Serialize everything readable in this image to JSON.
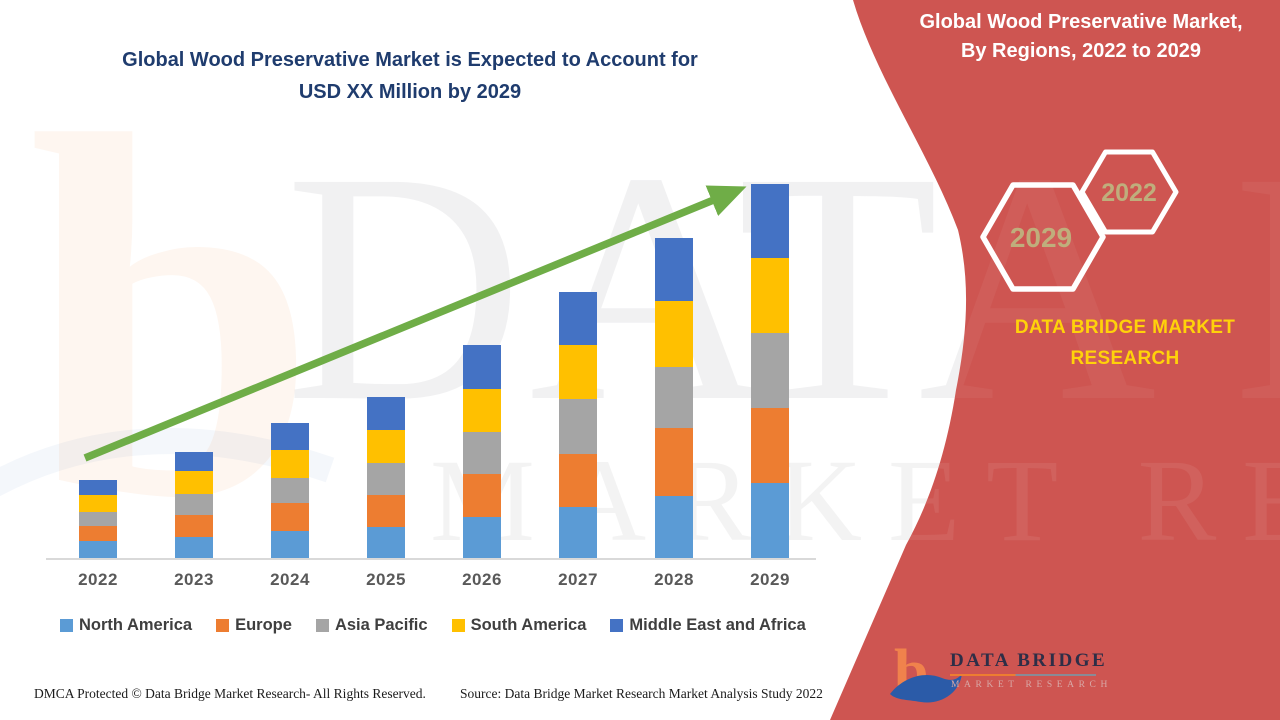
{
  "title": {
    "line1": "Global Wood Preservative Market is Expected to Account for",
    "line2": "USD XX Million by 2029"
  },
  "sidebar": {
    "heading_line1": "Global Wood Preservative Market,",
    "heading_line2": "By Regions, 2022 to 2029",
    "hexagons": [
      {
        "label": "2029"
      },
      {
        "label": "2022"
      }
    ],
    "brand_line1": "DATA BRIDGE MARKET",
    "brand_line2": "RESEARCH",
    "accent_red": "#ce5551",
    "brand_yellow": "#ffd20a",
    "hex_text_color": "#bfae7c"
  },
  "logo": {
    "mark": "b-swoosh-icon",
    "name": "DATA BRIDGE",
    "subtitle": "MARKET RESEARCH"
  },
  "watermark": {
    "letter": "b",
    "line1": "DATA BRIDGE",
    "line2": "MARKET RESEARCH"
  },
  "footer": {
    "left": "DMCA Protected © Data Bridge Market Research- All Rights Reserved.",
    "source": "Source: Data Bridge Market Research Market Analysis Study 2022"
  },
  "chart_data": {
    "type": "bar",
    "stacked": true,
    "title": "Global Wood Preservative Market is Expected to Account for USD XX Million by 2029",
    "categories": [
      "2022",
      "2023",
      "2024",
      "2025",
      "2026",
      "2027",
      "2028",
      "2029"
    ],
    "series": [
      {
        "name": "North America",
        "color": "#5b9bd5",
        "values": [
          17,
          21,
          27,
          31,
          41,
          51,
          62,
          75
        ]
      },
      {
        "name": "Europe",
        "color": "#ed7d31",
        "values": [
          15,
          22,
          28,
          32,
          43,
          53,
          68,
          75
        ]
      },
      {
        "name": "Asia Pacific",
        "color": "#a5a5a5",
        "values": [
          14,
          21,
          25,
          32,
          42,
          55,
          61,
          75
        ]
      },
      {
        "name": "South America",
        "color": "#ffc000",
        "values": [
          17,
          23,
          28,
          33,
          43,
          54,
          66,
          75
        ]
      },
      {
        "name": "Middle East and Africa",
        "color": "#4472c4",
        "values": [
          15,
          19,
          27,
          33,
          44,
          53,
          63,
          74
        ]
      }
    ],
    "totals": [
      78,
      106,
      135,
      161,
      213,
      266,
      320,
      374
    ],
    "units": "relative estimated values; chart displays no numeric axis (USD XX Million placeholder)",
    "value_axis_labels": "hidden",
    "gridlines": false,
    "legend_position": "bottom",
    "trend_arrow": true,
    "trend_arrow_color": "#6fad47"
  }
}
